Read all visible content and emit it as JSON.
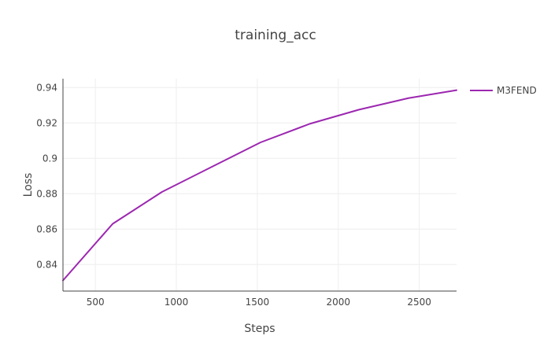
{
  "chart_data": {
    "type": "line",
    "title": "training_acc",
    "xlabel": "Steps",
    "ylabel": "Loss",
    "xlim": [
      300,
      2730
    ],
    "ylim": [
      0.825,
      0.945
    ],
    "x_ticks": [
      500,
      1000,
      1500,
      2000,
      2500
    ],
    "y_ticks": [
      0.84,
      0.86,
      0.88,
      0.9,
      0.92,
      0.94
    ],
    "y_tick_labels": [
      "0.84",
      "0.86",
      "0.88",
      "0.9",
      "0.92",
      "0.94"
    ],
    "grid": true,
    "legend_position": "top-right",
    "series": [
      {
        "name": "M3FEND",
        "color": "#9C27B0",
        "x": [
          300,
          607,
          911,
          1215,
          1520,
          1824,
          2128,
          2433,
          2730
        ],
        "y": [
          0.831,
          0.863,
          0.881,
          0.895,
          0.909,
          0.9195,
          0.9275,
          0.934,
          0.9385
        ]
      }
    ]
  }
}
